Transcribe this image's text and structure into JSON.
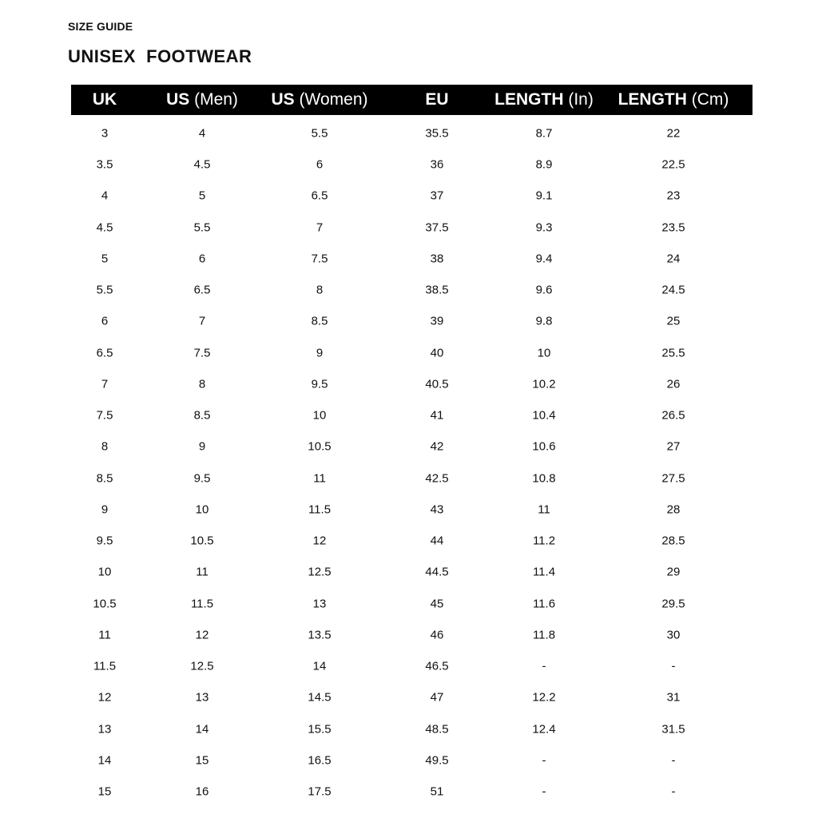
{
  "kicker": "SIZE GUIDE",
  "title": "UNISEX  FOOTWEAR",
  "columns": [
    {
      "bold": "UK",
      "light": ""
    },
    {
      "bold": "US",
      "light": " (Men)"
    },
    {
      "bold": "US",
      "light": " (Women)"
    },
    {
      "bold": "EU",
      "light": ""
    },
    {
      "bold": "LENGTH",
      "light": " (In)"
    },
    {
      "bold": "LENGTH",
      "light": " (Cm)"
    }
  ],
  "rows": [
    [
      "3",
      "4",
      "5.5",
      "35.5",
      "8.7",
      "22"
    ],
    [
      "3.5",
      "4.5",
      "6",
      "36",
      "8.9",
      "22.5"
    ],
    [
      "4",
      "5",
      "6.5",
      "37",
      "9.1",
      "23"
    ],
    [
      "4.5",
      "5.5",
      "7",
      "37.5",
      "9.3",
      "23.5"
    ],
    [
      "5",
      "6",
      "7.5",
      "38",
      "9.4",
      "24"
    ],
    [
      "5.5",
      "6.5",
      "8",
      "38.5",
      "9.6",
      "24.5"
    ],
    [
      "6",
      "7",
      "8.5",
      "39",
      "9.8",
      "25"
    ],
    [
      "6.5",
      "7.5",
      "9",
      "40",
      "10",
      "25.5"
    ],
    [
      "7",
      "8",
      "9.5",
      "40.5",
      "10.2",
      "26"
    ],
    [
      "7.5",
      "8.5",
      "10",
      "41",
      "10.4",
      "26.5"
    ],
    [
      "8",
      "9",
      "10.5",
      "42",
      "10.6",
      "27"
    ],
    [
      "8.5",
      "9.5",
      "11",
      "42.5",
      "10.8",
      "27.5"
    ],
    [
      "9",
      "10",
      "11.5",
      "43",
      "11",
      "28"
    ],
    [
      "9.5",
      "10.5",
      "12",
      "44",
      "11.2",
      "28.5"
    ],
    [
      "10",
      "11",
      "12.5",
      "44.5",
      "11.4",
      "29"
    ],
    [
      "10.5",
      "11.5",
      "13",
      "45",
      "11.6",
      "29.5"
    ],
    [
      "11",
      "12",
      "13.5",
      "46",
      "11.8",
      "30"
    ],
    [
      "11.5",
      "12.5",
      "14",
      "46.5",
      "-",
      "-"
    ],
    [
      "12",
      "13",
      "14.5",
      "47",
      "12.2",
      "31"
    ],
    [
      "13",
      "14",
      "15.5",
      "48.5",
      "12.4",
      "31.5"
    ],
    [
      "14",
      "15",
      "16.5",
      "49.5",
      "-",
      "-"
    ],
    [
      "15",
      "16",
      "17.5",
      "51",
      "-",
      "-"
    ]
  ]
}
